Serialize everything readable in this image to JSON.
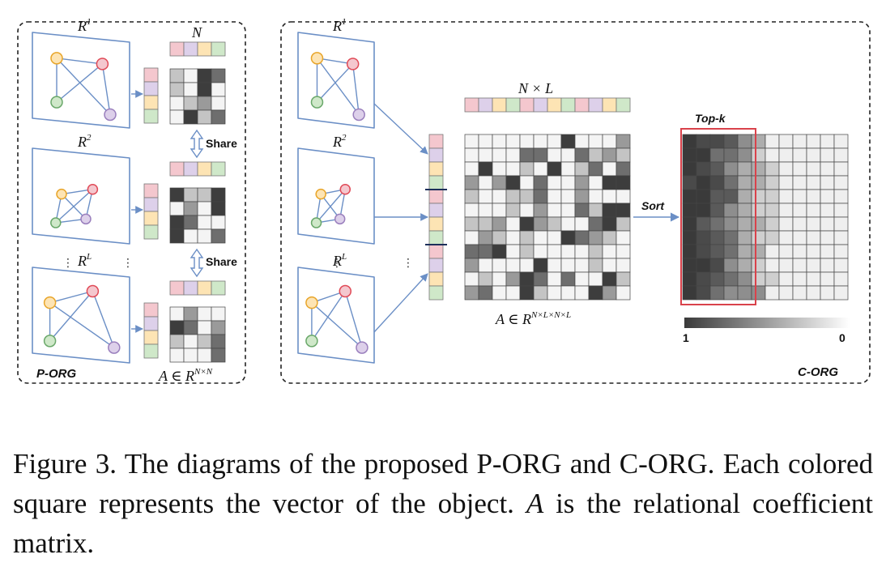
{
  "porg": {
    "label": "P-ORG",
    "graphs": [
      {
        "label": "R",
        "sup": "1"
      },
      {
        "label": "R",
        "sup": "2"
      },
      {
        "label": "R",
        "sup": "L"
      }
    ],
    "n_label": "N",
    "share_label": "Share",
    "matrix_label": "A ∈ R",
    "matrix_sup": "N×N"
  },
  "corg": {
    "label": "C-ORG",
    "graphs": [
      {
        "label": "R",
        "sup": "1"
      },
      {
        "label": "R",
        "sup": "2"
      },
      {
        "label": "R",
        "sup": "L"
      }
    ],
    "nl_label": "N × L",
    "matrix_label": "A ∈ R",
    "matrix_sup": "N×L×N×L",
    "sort_label": "Sort",
    "topk_label": "Top-k",
    "colorbar_min": "1",
    "colorbar_max": "0"
  },
  "ellipsis": "⋮",
  "colors": {
    "node_red": "#f4c7ce",
    "node_purple": "#ddd0ea",
    "node_yellow": "#fde4b4",
    "node_green": "#cfe8c9",
    "stroke_red": "#e04a57",
    "stroke_purple": "#9a7fbd",
    "stroke_yellow": "#e8a52a",
    "stroke_green": "#6aa86a",
    "graph_blue": "#6b8fc6",
    "topk_red": "#d9424b"
  },
  "caption": {
    "prefix": "Figure 3. The diagrams of the proposed P-ORG and C-ORG. Each colored square represents the vector of the object. ",
    "var": "A",
    "suffix": " is the relational coefficient matrix."
  }
}
